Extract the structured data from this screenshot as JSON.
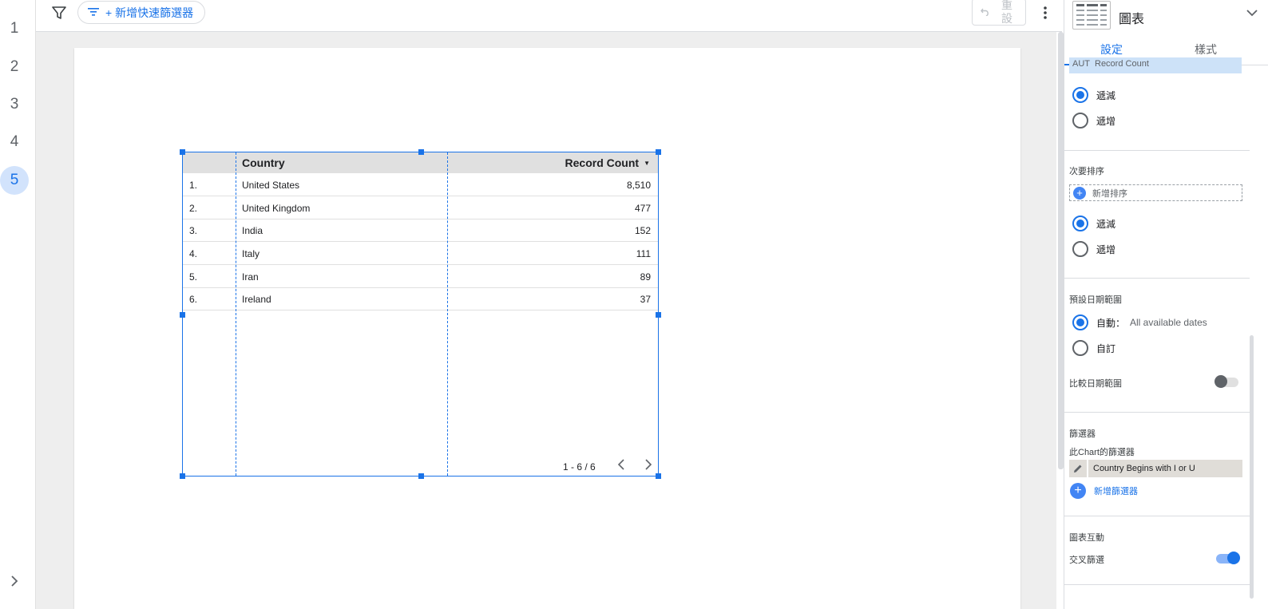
{
  "rail": {
    "pages": [
      "1",
      "2",
      "3",
      "4",
      "5"
    ],
    "active_page": "5",
    "expand_icon": "chevron-right-icon"
  },
  "toolbar": {
    "filter_icon": "filter-icon",
    "quick_filter_label": "+ 新增快速篩選器",
    "reset_label": "重設",
    "more_icon": "more-vert-icon"
  },
  "table": {
    "headers": {
      "index": "",
      "country": "Country",
      "count": "Record Count"
    },
    "rows": [
      {
        "index": "1.",
        "country": "United States",
        "count": "8,510"
      },
      {
        "index": "2.",
        "country": "United Kingdom",
        "count": "477"
      },
      {
        "index": "3.",
        "country": "India",
        "count": "152"
      },
      {
        "index": "4.",
        "country": "Italy",
        "count": "111"
      },
      {
        "index": "5.",
        "country": "Iran",
        "count": "89"
      },
      {
        "index": "6.",
        "country": "Ireland",
        "count": "37"
      }
    ],
    "pagination": "1 - 6 / 6"
  },
  "panel": {
    "chart_type": "圖表",
    "tabs": {
      "setup": "設定",
      "style": "樣式"
    },
    "sort_metric": {
      "agg": "AUT",
      "name": "Record Count"
    },
    "primary_sort": {
      "desc": "遞減",
      "asc": "遞增",
      "selected": "desc"
    },
    "secondary_sort": {
      "label": "次要排序",
      "add": "新增排序",
      "desc": "遞減",
      "asc": "遞增",
      "selected": "desc"
    },
    "date_range": {
      "label": "預設日期範圍",
      "auto": "自動：",
      "auto_value": "All available dates",
      "custom": "自訂",
      "compare": "比較日期範圍",
      "compare_on": false
    },
    "filters": {
      "label": "篩選器",
      "sub_label": "此Chart的篩選器",
      "filter_name": "Country Begins with I or U",
      "add": "新增篩選器"
    },
    "interaction": {
      "label": "圖表互動",
      "cross_filter": "交叉篩選",
      "cross_filter_on": true
    }
  },
  "colors": {
    "accent": "#1a73e8",
    "header_bg": "#e0e0e0",
    "chip_blue": "#cde2f8",
    "filter_chip": "#e0ddd8"
  }
}
